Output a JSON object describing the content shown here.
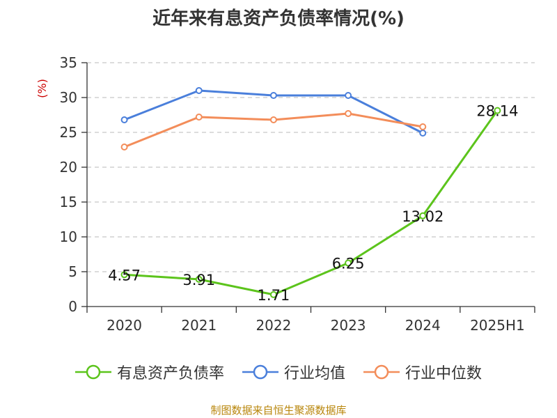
{
  "chart_data": {
    "type": "line",
    "title": "近年来有息资产负债率情况(%)",
    "ylabel": "(%)",
    "xlabel": "",
    "categories": [
      "2020",
      "2021",
      "2022",
      "2023",
      "2024",
      "2025H1"
    ],
    "ylim": [
      0,
      35
    ],
    "yticks": [
      0,
      5,
      10,
      15,
      20,
      25,
      30,
      35
    ],
    "grid": true,
    "legend_position": "bottom",
    "series": [
      {
        "name": "有息资产负债率",
        "color": "#5cc41c",
        "values": [
          4.57,
          3.91,
          1.71,
          6.25,
          13.02,
          28.14
        ],
        "data_labels": [
          "4.57",
          "3.91",
          "1.71",
          "6.25",
          "13.02",
          "28.14"
        ]
      },
      {
        "name": "行业均值",
        "color": "#4a7fdb",
        "values": [
          26.8,
          31.0,
          30.3,
          30.3,
          24.9,
          null
        ]
      },
      {
        "name": "行业中位数",
        "color": "#f38d5a",
        "values": [
          22.9,
          27.2,
          26.8,
          27.7,
          25.8,
          null
        ]
      }
    ]
  },
  "footer": {
    "source": "制图数据来自恒生聚源数据库"
  }
}
